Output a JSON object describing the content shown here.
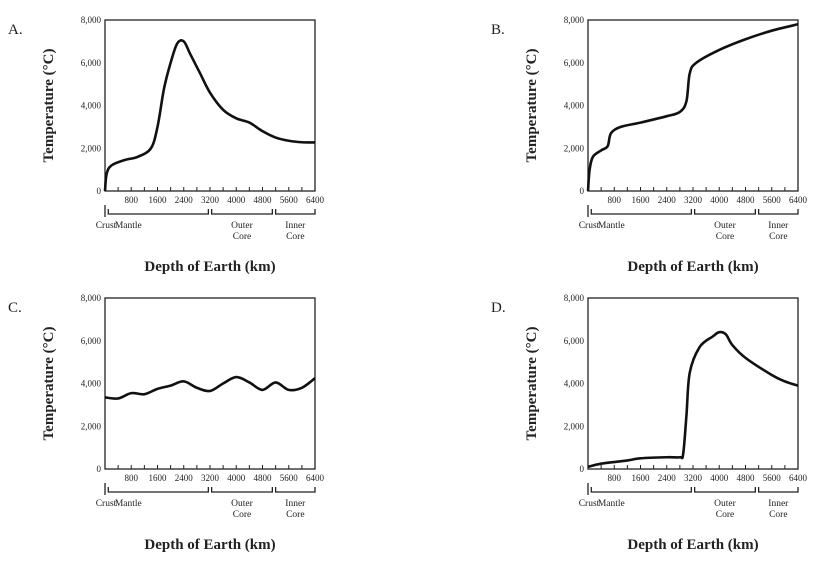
{
  "chart_data": [
    {
      "type": "line",
      "panel": "A.",
      "xlabel": "Depth of Earth (km)",
      "ylabel": "Temperature (°C)",
      "xlim": [
        0,
        6400
      ],
      "ylim": [
        0,
        8000
      ],
      "x_ticks": [
        "800",
        "1600",
        "2400",
        "3200",
        "4000",
        "4800",
        "5600",
        "6400"
      ],
      "y_ticks": [
        "0",
        "2,000",
        "4,000",
        "6,000",
        "8,000"
      ],
      "layers": [
        {
          "label": "Crust",
          "sub": ""
        },
        {
          "label": "Mantle",
          "sub": ""
        },
        {
          "label": "Outer",
          "sub": "Core"
        },
        {
          "label": "Inner",
          "sub": "Core"
        }
      ],
      "points": [
        [
          0,
          0
        ],
        [
          50,
          800
        ],
        [
          200,
          1200
        ],
        [
          600,
          1450
        ],
        [
          1000,
          1600
        ],
        [
          1400,
          2000
        ],
        [
          1600,
          3000
        ],
        [
          1800,
          4800
        ],
        [
          2000,
          6000
        ],
        [
          2200,
          6900
        ],
        [
          2400,
          7000
        ],
        [
          2600,
          6400
        ],
        [
          2900,
          5500
        ],
        [
          3200,
          4600
        ],
        [
          3600,
          3800
        ],
        [
          4000,
          3400
        ],
        [
          4400,
          3200
        ],
        [
          4800,
          2800
        ],
        [
          5200,
          2500
        ],
        [
          5600,
          2350
        ],
        [
          6000,
          2280
        ],
        [
          6400,
          2270
        ]
      ]
    },
    {
      "type": "line",
      "panel": "B.",
      "xlabel": "Depth of Earth (km)",
      "ylabel": "Temperature (°C)",
      "xlim": [
        0,
        6400
      ],
      "ylim": [
        0,
        8000
      ],
      "x_ticks": [
        "800",
        "1600",
        "2400",
        "3200",
        "4000",
        "4800",
        "5600",
        "6400"
      ],
      "y_ticks": [
        "0",
        "2,000",
        "4,000",
        "6,000",
        "8,000"
      ],
      "layers": [
        {
          "label": "Crust",
          "sub": ""
        },
        {
          "label": "Mantle",
          "sub": ""
        },
        {
          "label": "Outer",
          "sub": "Core"
        },
        {
          "label": "Inner",
          "sub": "Core"
        }
      ],
      "points": [
        [
          0,
          0
        ],
        [
          50,
          1000
        ],
        [
          150,
          1600
        ],
        [
          400,
          1900
        ],
        [
          600,
          2100
        ],
        [
          700,
          2700
        ],
        [
          1000,
          3000
        ],
        [
          1600,
          3200
        ],
        [
          2400,
          3500
        ],
        [
          2800,
          3700
        ],
        [
          3000,
          4200
        ],
        [
          3100,
          5500
        ],
        [
          3300,
          6000
        ],
        [
          4000,
          6600
        ],
        [
          4800,
          7100
        ],
        [
          5600,
          7500
        ],
        [
          6400,
          7800
        ]
      ]
    },
    {
      "type": "line",
      "panel": "C.",
      "xlabel": "Depth of Earth (km)",
      "ylabel": "Temperature (°C)",
      "xlim": [
        0,
        6400
      ],
      "ylim": [
        0,
        8000
      ],
      "x_ticks": [
        "800",
        "1600",
        "2400",
        "3200",
        "4000",
        "4800",
        "5600",
        "6400"
      ],
      "y_ticks": [
        "0",
        "2,000",
        "4,000",
        "6,000",
        "8,000"
      ],
      "layers": [
        {
          "label": "Crust",
          "sub": ""
        },
        {
          "label": "Mantle",
          "sub": ""
        },
        {
          "label": "Outer",
          "sub": "Core"
        },
        {
          "label": "Inner",
          "sub": "Core"
        }
      ],
      "points": [
        [
          0,
          3350
        ],
        [
          400,
          3300
        ],
        [
          800,
          3550
        ],
        [
          1200,
          3500
        ],
        [
          1600,
          3750
        ],
        [
          2000,
          3900
        ],
        [
          2400,
          4100
        ],
        [
          2800,
          3800
        ],
        [
          3200,
          3650
        ],
        [
          3600,
          4000
        ],
        [
          4000,
          4300
        ],
        [
          4400,
          4050
        ],
        [
          4800,
          3700
        ],
        [
          5200,
          4050
        ],
        [
          5600,
          3700
        ],
        [
          6000,
          3800
        ],
        [
          6400,
          4250
        ]
      ]
    },
    {
      "type": "line",
      "panel": "D.",
      "xlabel": "Depth of Earth (km)",
      "ylabel": "Temperature (°C)",
      "xlim": [
        0,
        6400
      ],
      "ylim": [
        0,
        8000
      ],
      "x_ticks": [
        "800",
        "1600",
        "2400",
        "3200",
        "4000",
        "4800",
        "5600",
        "6400"
      ],
      "y_ticks": [
        "0",
        "2,000",
        "4,000",
        "6,000",
        "8,000"
      ],
      "layers": [
        {
          "label": "Crust",
          "sub": ""
        },
        {
          "label": "Mantle",
          "sub": ""
        },
        {
          "label": "Outer",
          "sub": "Core"
        },
        {
          "label": "Inner",
          "sub": "Core"
        }
      ],
      "points": [
        [
          0,
          100
        ],
        [
          400,
          250
        ],
        [
          1200,
          400
        ],
        [
          1600,
          500
        ],
        [
          2400,
          550
        ],
        [
          2800,
          550
        ],
        [
          2900,
          700
        ],
        [
          3000,
          2500
        ],
        [
          3100,
          4500
        ],
        [
          3400,
          5700
        ],
        [
          3800,
          6200
        ],
        [
          4000,
          6400
        ],
        [
          4200,
          6300
        ],
        [
          4400,
          5800
        ],
        [
          4800,
          5200
        ],
        [
          5600,
          4400
        ],
        [
          6000,
          4100
        ],
        [
          6400,
          3900
        ]
      ]
    }
  ]
}
